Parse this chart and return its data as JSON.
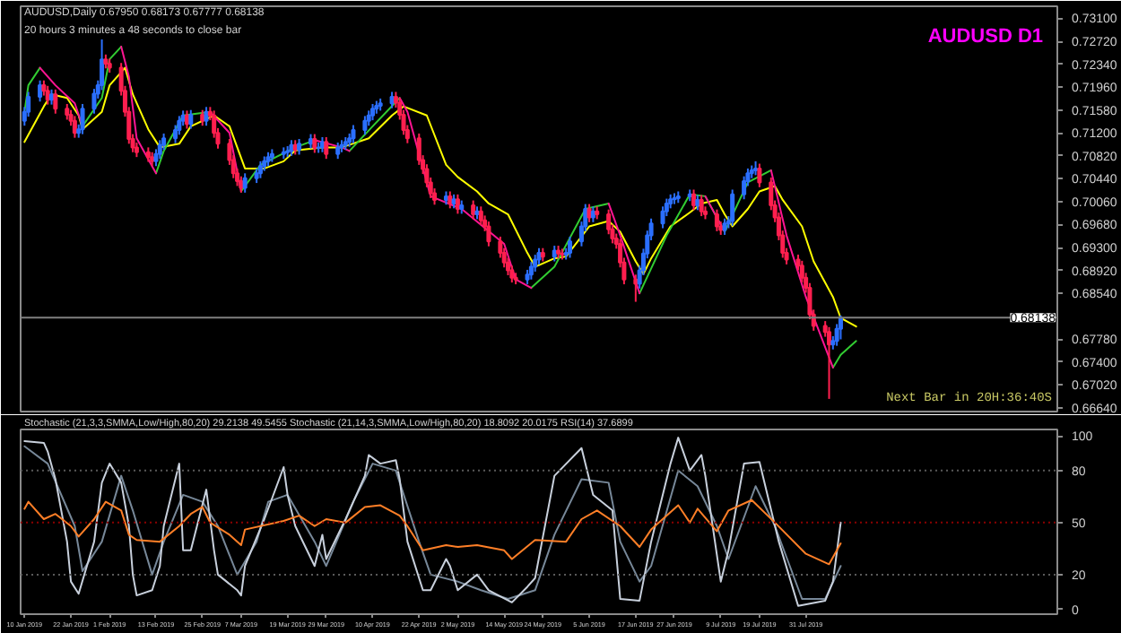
{
  "chart_data": [
    {
      "type": "candlestick",
      "title": "AUDUSD D1",
      "annotations": [
        "AUDUSD,Daily  0.67950 0.68173 0.67777 0.68138",
        "20 hours 3 minutes a 48 seconds to close bar",
        "Next Bar in 20H:36:40S"
      ],
      "x": [
        "2019-01-10",
        "2019-01-11",
        "2019-01-14",
        "2019-01-15",
        "2019-01-16",
        "2019-01-17",
        "2019-01-18",
        "2019-01-21",
        "2019-01-22",
        "2019-01-23",
        "2019-01-24",
        "2019-01-25",
        "2019-01-28",
        "2019-01-29",
        "2019-01-30",
        "2019-01-31",
        "2019-02-01",
        "2019-02-04",
        "2019-02-05",
        "2019-02-06",
        "2019-02-07",
        "2019-02-08",
        "2019-02-11",
        "2019-02-12",
        "2019-02-13",
        "2019-02-14",
        "2019-02-15",
        "2019-02-18",
        "2019-02-19",
        "2019-02-20",
        "2019-02-21",
        "2019-02-22",
        "2019-02-25",
        "2019-02-26",
        "2019-02-27",
        "2019-02-28",
        "2019-03-01",
        "2019-03-04",
        "2019-03-05",
        "2019-03-06",
        "2019-03-07",
        "2019-03-08",
        "2019-03-11",
        "2019-03-12",
        "2019-03-13",
        "2019-03-14",
        "2019-03-15",
        "2019-03-18",
        "2019-03-19",
        "2019-03-20",
        "2019-03-21",
        "2019-03-22",
        "2019-03-25",
        "2019-03-26",
        "2019-03-27",
        "2019-03-28",
        "2019-03-29",
        "2019-04-01",
        "2019-04-02",
        "2019-04-03",
        "2019-04-04",
        "2019-04-05",
        "2019-04-08",
        "2019-04-09",
        "2019-04-10",
        "2019-04-11",
        "2019-04-12",
        "2019-04-15",
        "2019-04-16",
        "2019-04-17",
        "2019-04-18",
        "2019-04-19",
        "2019-04-22",
        "2019-04-23",
        "2019-04-24",
        "2019-04-25",
        "2019-04-26",
        "2019-04-29",
        "2019-04-30",
        "2019-05-01",
        "2019-05-02",
        "2019-05-03",
        "2019-05-06",
        "2019-05-07",
        "2019-05-08",
        "2019-05-09",
        "2019-05-10",
        "2019-05-13",
        "2019-05-14",
        "2019-05-15",
        "2019-05-16",
        "2019-05-17",
        "2019-05-20",
        "2019-05-21",
        "2019-05-22",
        "2019-05-23",
        "2019-05-24",
        "2019-05-27",
        "2019-05-28",
        "2019-05-29",
        "2019-05-30",
        "2019-05-31",
        "2019-06-03",
        "2019-06-04",
        "2019-06-05",
        "2019-06-06",
        "2019-06-07",
        "2019-06-10",
        "2019-06-11",
        "2019-06-12",
        "2019-06-13",
        "2019-06-14",
        "2019-06-17",
        "2019-06-18",
        "2019-06-19",
        "2019-06-20",
        "2019-06-21",
        "2019-06-24",
        "2019-06-25",
        "2019-06-26",
        "2019-06-27",
        "2019-06-28",
        "2019-07-01",
        "2019-07-02",
        "2019-07-03",
        "2019-07-04",
        "2019-07-05",
        "2019-07-08",
        "2019-07-09",
        "2019-07-10",
        "2019-07-11",
        "2019-07-12",
        "2019-07-15",
        "2019-07-16",
        "2019-07-17",
        "2019-07-18",
        "2019-07-19",
        "2019-07-22",
        "2019-07-23",
        "2019-07-24",
        "2019-07-25",
        "2019-07-26",
        "2019-07-29",
        "2019-07-30",
        "2019-07-31",
        "2019-08-01",
        "2019-08-02",
        "2019-08-05",
        "2019-08-06",
        "2019-08-07",
        "2019-08-08",
        "2019-08-09"
      ],
      "ohlc": [
        [
          0.714,
          0.7163,
          0.7132,
          0.7155
        ],
        [
          0.7155,
          0.7188,
          0.7147,
          0.718
        ],
        [
          0.718,
          0.7207,
          0.7172,
          0.7199
        ],
        [
          0.7199,
          0.7207,
          0.7182,
          0.719
        ],
        [
          0.719,
          0.7198,
          0.7167,
          0.7175
        ],
        [
          0.7175,
          0.7192,
          0.7167,
          0.7184
        ],
        [
          0.7184,
          0.7192,
          0.7152,
          0.716
        ],
        [
          0.716,
          0.7168,
          0.7142,
          0.715
        ],
        [
          0.715,
          0.7158,
          0.7132,
          0.714
        ],
        [
          0.714,
          0.7148,
          0.7112,
          0.712
        ],
        [
          0.712,
          0.7134,
          0.7112,
          0.7126
        ],
        [
          0.7126,
          0.7168,
          0.7118,
          0.716
        ],
        [
          0.716,
          0.7193,
          0.7152,
          0.7185
        ],
        [
          0.7185,
          0.7207,
          0.7177,
          0.7199
        ],
        [
          0.7199,
          0.7275,
          0.7191,
          0.7242
        ],
        [
          0.7242,
          0.725,
          0.7227,
          0.7235
        ],
        [
          0.7235,
          0.7243,
          0.722,
          0.7228
        ],
        [
          0.7228,
          0.7236,
          0.7182,
          0.719
        ],
        [
          0.719,
          0.7198,
          0.7147,
          0.7155
        ],
        [
          0.7155,
          0.7163,
          0.7102,
          0.711
        ],
        [
          0.711,
          0.7118,
          0.7088,
          0.7096
        ],
        [
          0.7096,
          0.7104,
          0.708,
          0.7088
        ],
        [
          0.7088,
          0.7096,
          0.7072,
          0.708
        ],
        [
          0.708,
          0.7088,
          0.7065,
          0.7073
        ],
        [
          0.7073,
          0.7093,
          0.7065,
          0.7085
        ],
        [
          0.7085,
          0.7108,
          0.7077,
          0.71
        ],
        [
          0.71,
          0.7119,
          0.7092,
          0.7111
        ],
        [
          0.7111,
          0.7133,
          0.7103,
          0.7125
        ],
        [
          0.7125,
          0.7148,
          0.7117,
          0.714
        ],
        [
          0.714,
          0.7157,
          0.7132,
          0.7149
        ],
        [
          0.7149,
          0.7157,
          0.7127,
          0.7135
        ],
        [
          0.7135,
          0.7158,
          0.7127,
          0.715
        ],
        [
          0.715,
          0.7158,
          0.7132,
          0.714
        ],
        [
          0.714,
          0.7163,
          0.7132,
          0.7155
        ],
        [
          0.7155,
          0.7163,
          0.7141,
          0.7149
        ],
        [
          0.7149,
          0.7157,
          0.7112,
          0.712
        ],
        [
          0.712,
          0.7128,
          0.7094,
          0.7102
        ],
        [
          0.7102,
          0.711,
          0.7067,
          0.7075
        ],
        [
          0.7075,
          0.7083,
          0.7045,
          0.7053
        ],
        [
          0.7053,
          0.7061,
          0.7032,
          0.704
        ],
        [
          0.704,
          0.7048,
          0.7021,
          0.7029
        ],
        [
          0.7029,
          0.7053,
          0.7021,
          0.7045
        ],
        [
          0.7045,
          0.7061,
          0.7037,
          0.7053
        ],
        [
          0.7053,
          0.7073,
          0.7045,
          0.7065
        ],
        [
          0.7065,
          0.7081,
          0.7057,
          0.7073
        ],
        [
          0.7073,
          0.7088,
          0.7065,
          0.708
        ],
        [
          0.708,
          0.7093,
          0.7072,
          0.7085
        ],
        [
          0.7085,
          0.7096,
          0.7077,
          0.7088
        ],
        [
          0.7088,
          0.7098,
          0.708,
          0.709
        ],
        [
          0.709,
          0.7108,
          0.7082,
          0.71
        ],
        [
          0.71,
          0.7108,
          0.7084,
          0.7092
        ],
        [
          0.7092,
          0.711,
          0.7084,
          0.7102
        ],
        [
          0.7102,
          0.7118,
          0.7094,
          0.711
        ],
        [
          0.711,
          0.7118,
          0.7087,
          0.7095
        ],
        [
          0.7095,
          0.7104,
          0.7087,
          0.7096
        ],
        [
          0.7096,
          0.7113,
          0.7088,
          0.7105
        ],
        [
          0.7105,
          0.7113,
          0.7077,
          0.7085
        ],
        [
          0.7085,
          0.7104,
          0.7077,
          0.7096
        ],
        [
          0.7096,
          0.7108,
          0.7088,
          0.71
        ],
        [
          0.71,
          0.7113,
          0.7092,
          0.7105
        ],
        [
          0.7105,
          0.7119,
          0.7097,
          0.7111
        ],
        [
          0.7111,
          0.7133,
          0.7103,
          0.7125
        ],
        [
          0.7125,
          0.7148,
          0.7117,
          0.714
        ],
        [
          0.714,
          0.7157,
          0.7132,
          0.7149
        ],
        [
          0.7149,
          0.7168,
          0.7141,
          0.716
        ],
        [
          0.716,
          0.7173,
          0.7152,
          0.7165
        ],
        [
          0.7165,
          0.7177,
          0.7157,
          0.7169
        ],
        [
          0.7169,
          0.7188,
          0.7161,
          0.718
        ],
        [
          0.718,
          0.7188,
          0.7162,
          0.717
        ],
        [
          0.717,
          0.7178,
          0.7142,
          0.715
        ],
        [
          0.715,
          0.7158,
          0.7117,
          0.7125
        ],
        [
          0.7125,
          0.7133,
          0.7103,
          0.7111
        ],
        [
          0.7111,
          0.7119,
          0.7067,
          0.7075
        ],
        [
          0.7075,
          0.7083,
          0.7052,
          0.706
        ],
        [
          0.706,
          0.7068,
          0.703,
          0.7038
        ],
        [
          0.7038,
          0.7046,
          0.7012,
          0.702
        ],
        [
          0.702,
          0.7028,
          0.7001,
          0.7009
        ],
        [
          0.7009,
          0.7023,
          0.7001,
          0.7015
        ],
        [
          0.7015,
          0.7023,
          0.6995,
          0.7003
        ],
        [
          0.7003,
          0.7018,
          0.6995,
          0.701
        ],
        [
          0.701,
          0.7018,
          0.6986,
          0.6994
        ],
        [
          0.6994,
          0.7008,
          0.6986,
          0.7
        ],
        [
          0.7,
          0.7008,
          0.6977,
          0.6985
        ],
        [
          0.6985,
          0.6998,
          0.6977,
          0.699
        ],
        [
          0.699,
          0.6998,
          0.6967,
          0.6975
        ],
        [
          0.6975,
          0.6983,
          0.6957,
          0.6965
        ],
        [
          0.6965,
          0.6973,
          0.6932,
          0.694
        ],
        [
          0.694,
          0.6948,
          0.6913,
          0.6921
        ],
        [
          0.6921,
          0.6929,
          0.6897,
          0.6905
        ],
        [
          0.6905,
          0.6913,
          0.6884,
          0.6892
        ],
        [
          0.6892,
          0.69,
          0.6872,
          0.688
        ],
        [
          0.688,
          0.6888,
          0.6869,
          0.6877
        ],
        [
          0.6877,
          0.6893,
          0.6869,
          0.6885
        ],
        [
          0.6885,
          0.6906,
          0.6877,
          0.6898
        ],
        [
          0.6898,
          0.6918,
          0.689,
          0.691
        ],
        [
          0.691,
          0.6929,
          0.6902,
          0.6921
        ],
        [
          0.6921,
          0.6929,
          0.6907,
          0.6915
        ],
        [
          0.6915,
          0.6933,
          0.6907,
          0.6925
        ],
        [
          0.6925,
          0.6933,
          0.6912,
          0.692
        ],
        [
          0.692,
          0.6928,
          0.691,
          0.6918
        ],
        [
          0.6918,
          0.6929,
          0.691,
          0.6921
        ],
        [
          0.6921,
          0.6948,
          0.6913,
          0.694
        ],
        [
          0.694,
          0.6973,
          0.6932,
          0.6965
        ],
        [
          0.6965,
          0.7002,
          0.6957,
          0.6994
        ],
        [
          0.6994,
          0.7002,
          0.6972,
          0.698
        ],
        [
          0.698,
          0.6998,
          0.6972,
          0.699
        ],
        [
          0.699,
          0.6998,
          0.6977,
          0.6985
        ],
        [
          0.6985,
          0.6993,
          0.6952,
          0.696
        ],
        [
          0.696,
          0.6968,
          0.6937,
          0.6945
        ],
        [
          0.6945,
          0.6953,
          0.6928,
          0.6936
        ],
        [
          0.6936,
          0.6944,
          0.6897,
          0.6905
        ],
        [
          0.6905,
          0.6913,
          0.6869,
          0.6877
        ],
        [
          0.6877,
          0.6885,
          0.684,
          0.687
        ],
        [
          0.687,
          0.69,
          0.6862,
          0.6892
        ],
        [
          0.6892,
          0.6928,
          0.6884,
          0.692
        ],
        [
          0.692,
          0.6958,
          0.6912,
          0.695
        ],
        [
          0.695,
          0.6978,
          0.6942,
          0.697
        ],
        [
          0.697,
          0.6998,
          0.6962,
          0.699
        ],
        [
          0.699,
          0.7011,
          0.6982,
          0.7003
        ],
        [
          0.7003,
          0.7018,
          0.6995,
          0.701
        ],
        [
          0.701,
          0.702,
          0.7002,
          0.7012
        ],
        [
          0.7012,
          0.7023,
          0.7004,
          0.7015
        ],
        [
          0.7015,
          0.7026,
          0.7007,
          0.7018
        ],
        [
          0.7018,
          0.7026,
          0.6992,
          0.7
        ],
        [
          0.7,
          0.7017,
          0.6992,
          0.7009
        ],
        [
          0.7009,
          0.7017,
          0.6982,
          0.699
        ],
        [
          0.699,
          0.6998,
          0.6977,
          0.6985
        ],
        [
          0.6985,
          0.6993,
          0.6957,
          0.6965
        ],
        [
          0.6965,
          0.6973,
          0.6951,
          0.6959
        ],
        [
          0.6959,
          0.6978,
          0.6951,
          0.697
        ],
        [
          0.697,
          0.6982,
          0.6962,
          0.6974
        ],
        [
          0.6974,
          0.7026,
          0.6966,
          0.7018
        ],
        [
          0.7018,
          0.7048,
          0.701,
          0.704
        ],
        [
          0.704,
          0.7061,
          0.7032,
          0.7053
        ],
        [
          0.7053,
          0.7066,
          0.7045,
          0.7058
        ],
        [
          0.7058,
          0.7073,
          0.705,
          0.7061
        ],
        [
          0.7061,
          0.7069,
          0.703,
          0.7038
        ],
        [
          0.7038,
          0.7046,
          0.6992,
          0.7
        ],
        [
          0.7,
          0.7008,
          0.6972,
          0.698
        ],
        [
          0.698,
          0.6988,
          0.6942,
          0.695
        ],
        [
          0.695,
          0.6958,
          0.6913,
          0.6921
        ],
        [
          0.6921,
          0.6929,
          0.6902,
          0.691
        ],
        [
          0.691,
          0.6918,
          0.6892,
          0.69
        ],
        [
          0.69,
          0.6908,
          0.6872,
          0.688
        ],
        [
          0.688,
          0.6888,
          0.6855,
          0.6863
        ],
        [
          0.6863,
          0.6871,
          0.6811,
          0.6819
        ],
        [
          0.6819,
          0.6827,
          0.6792,
          0.68
        ],
        [
          0.68,
          0.6808,
          0.6782,
          0.679
        ],
        [
          0.679,
          0.6798,
          0.6679,
          0.6769
        ],
        [
          0.6769,
          0.6783,
          0.6761,
          0.6775
        ],
        [
          0.6775,
          0.6803,
          0.6767,
          0.6795
        ],
        [
          0.6795,
          0.68173,
          0.67777,
          0.68138
        ]
      ],
      "colors": [
        "#2b6fff",
        "#2b6fff",
        "#2b6fff",
        "#ff1f4f",
        "#ff1f4f",
        "#2b6fff",
        "#ff1f4f",
        "#ff1f4f",
        "#ff1f4f",
        "#ff1f4f",
        "#2b6fff",
        "#2b6fff",
        "#2b6fff",
        "#2b6fff",
        "#2b6fff",
        "#ff1f4f",
        "#ff1f4f",
        "#ff1f4f",
        "#ff1f4f",
        "#ff1f4f",
        "#ff1f4f",
        "#ff1f4f",
        "#ff1f4f",
        "#ff1f4f",
        "#2b6fff",
        "#2b6fff",
        "#2b6fff",
        "#2b6fff",
        "#2b6fff",
        "#2b6fff",
        "#ff1f4f",
        "#2b6fff",
        "#ff1f4f",
        "#2b6fff",
        "#ff1f4f",
        "#ff1f4f",
        "#ff1f4f",
        "#ff1f4f",
        "#ff1f4f",
        "#ff1f4f",
        "#ff1f4f",
        "#2b6fff",
        "#2b6fff",
        "#2b6fff",
        "#2b6fff",
        "#2b6fff",
        "#2b6fff",
        "#2b6fff",
        "#2b6fff",
        "#2b6fff",
        "#ff1f4f",
        "#2b6fff",
        "#2b6fff",
        "#ff1f4f",
        "#2b6fff",
        "#2b6fff",
        "#ff1f4f",
        "#2b6fff",
        "#2b6fff",
        "#2b6fff",
        "#2b6fff",
        "#2b6fff",
        "#2b6fff",
        "#2b6fff",
        "#2b6fff",
        "#2b6fff",
        "#2b6fff",
        "#2b6fff",
        "#ff1f4f",
        "#ff1f4f",
        "#ff1f4f",
        "#ff1f4f",
        "#ff1f4f",
        "#ff1f4f",
        "#ff1f4f",
        "#ff1f4f",
        "#ff1f4f",
        "#2b6fff",
        "#ff1f4f",
        "#2b6fff",
        "#ff1f4f",
        "#2b6fff",
        "#ff1f4f",
        "#2b6fff",
        "#ff1f4f",
        "#ff1f4f",
        "#ff1f4f",
        "#ff1f4f",
        "#ff1f4f",
        "#ff1f4f",
        "#ff1f4f",
        "#ff1f4f",
        "#2b6fff",
        "#2b6fff",
        "#2b6fff",
        "#2b6fff",
        "#ff1f4f",
        "#2b6fff",
        "#ff1f4f",
        "#ff1f4f",
        "#2b6fff",
        "#2b6fff",
        "#2b6fff",
        "#2b6fff",
        "#ff1f4f",
        "#2b6fff",
        "#ff1f4f",
        "#ff1f4f",
        "#ff1f4f",
        "#ff1f4f",
        "#ff1f4f",
        "#ff1f4f",
        "#ff1f4f",
        "#2b6fff",
        "#2b6fff",
        "#2b6fff",
        "#2b6fff",
        "#2b6fff",
        "#2b6fff",
        "#2b6fff",
        "#2b6fff",
        "#2b6fff",
        "#2b6fff",
        "#ff1f4f",
        "#2b6fff",
        "#ff1f4f",
        "#ff1f4f",
        "#ff1f4f",
        "#ff1f4f",
        "#2b6fff",
        "#2b6fff",
        "#2b6fff",
        "#2b6fff",
        "#2b6fff",
        "#2b6fff",
        "#2b6fff",
        "#ff1f4f",
        "#ff1f4f",
        "#ff1f4f",
        "#ff1f4f",
        "#ff1f4f",
        "#ff1f4f",
        "#ff1f4f",
        "#ff1f4f",
        "#ff1f4f",
        "#ff1f4f",
        "#ff1f4f",
        "#ff1f4f",
        "#ff1f4f",
        "#2b6fff",
        "#2b6fff",
        "#2b6fff"
      ],
      "series": [
        {
          "type": "line",
          "color": "#ffff00",
          "x": [
            "2019-01-10",
            "2019-01-15",
            "2019-01-17",
            "2019-01-21",
            "2019-01-24",
            "2019-01-25",
            "2019-01-30",
            "2019-02-01",
            "2019-02-05",
            "2019-02-07",
            "2019-02-11",
            "2019-02-14",
            "2019-02-19",
            "2019-02-22",
            "2019-02-28",
            "2019-03-04",
            "2019-03-06",
            "2019-03-08",
            "2019-03-13",
            "2019-03-18",
            "2019-03-21",
            "2019-03-28",
            "2019-04-02",
            "2019-04-09",
            "2019-04-15",
            "2019-04-18",
            "2019-04-24",
            "2019-04-29",
            "2019-05-02",
            "2019-05-07",
            "2019-05-10",
            "2019-05-15",
            "2019-05-20",
            "2019-05-22",
            "2019-05-27",
            "2019-05-30",
            "2019-06-05",
            "2019-06-10",
            "2019-06-13",
            "2019-06-17",
            "2019-06-19",
            "2019-06-21",
            "2019-06-26",
            "2019-07-01",
            "2019-07-04",
            "2019-07-08",
            "2019-07-10",
            "2019-07-12",
            "2019-07-16",
            "2019-07-19",
            "2019-07-23",
            "2019-07-25",
            "2019-07-30",
            "2019-08-02",
            "2019-08-07",
            "2019-08-09",
            "2019-08-13"
          ],
          "values": [
            0.7105,
            0.7164,
            0.7184,
            0.7178,
            0.7149,
            0.7126,
            0.7155,
            0.7199,
            0.7228,
            0.7184,
            0.7126,
            0.7096,
            0.7102,
            0.7131,
            0.7149,
            0.7131,
            0.7096,
            0.7061,
            0.7061,
            0.7073,
            0.7091,
            0.7096,
            0.7096,
            0.7111,
            0.7149,
            0.7164,
            0.7149,
            0.7067,
            0.7047,
            0.7023,
            0.7003,
            0.6985,
            0.6921,
            0.6898,
            0.6912,
            0.6915,
            0.6965,
            0.6974,
            0.6956,
            0.6907,
            0.6886,
            0.6912,
            0.6965,
            0.6988,
            0.7003,
            0.7009,
            0.6985,
            0.6965,
            0.6994,
            0.7023,
            0.7032,
            0.7009,
            0.6965,
            0.6907,
            0.6848,
            0.6813,
            0.6799
          ]
        },
        {
          "type": "line",
          "color": "#32cd32",
          "x": [
            "2019-01-10",
            "2019-01-11",
            "2019-01-14",
            "2019-01-18",
            "2019-01-23",
            "2019-01-25",
            "2019-01-30",
            "2019-02-01",
            "2019-02-04",
            "2019-02-06",
            "2019-02-08",
            "2019-02-13",
            "2019-02-15",
            "2019-02-20",
            "2019-02-27",
            "2019-03-04",
            "2019-03-07",
            "2019-03-12",
            "2019-03-21",
            "2019-03-26",
            "2019-04-02",
            "2019-04-04",
            "2019-04-10",
            "2019-04-17",
            "2019-04-19",
            "2019-04-25",
            "2019-05-03",
            "2019-05-14",
            "2019-05-17",
            "2019-05-21",
            "2019-05-27",
            "2019-06-04",
            "2019-06-10",
            "2019-06-13",
            "2019-06-18",
            "2019-06-25",
            "2019-07-01",
            "2019-07-05",
            "2019-07-10",
            "2019-07-16",
            "2019-07-22",
            "2019-07-26",
            "2019-07-31",
            "2019-08-07",
            "2019-08-09",
            "2019-08-13"
          ],
          "values": [
            0.7155,
            0.7199,
            0.7228,
            null,
            null,
            0.7131,
            0.7178,
            0.7242,
            0.7263,
            null,
            null,
            0.7053,
            0.709,
            0.7149,
            0.7155,
            null,
            0.7023,
            0.7067,
            0.7096,
            0.7108,
            null,
            0.709,
            0.7131,
            0.7178,
            null,
            null,
            null,
            null,
            null,
            0.6863,
            0.6898,
            0.6994,
            0.7003,
            null,
            0.6854,
            0.695,
            0.7018,
            0.7015,
            0.6956,
            0.7038,
            0.7058,
            null,
            null,
            0.6731,
            0.6752,
            0.6775
          ]
        },
        {
          "type": "line",
          "color": "#ff1493",
          "x": [
            "2019-01-14",
            "2019-01-18",
            "2019-01-23",
            "2019-01-25",
            "2019-01-30",
            "2019-02-01",
            "2019-02-04",
            "2019-02-06",
            "2019-02-08",
            "2019-02-13",
            "2019-02-15",
            "2019-02-20",
            "2019-02-27",
            "2019-03-04",
            "2019-03-07",
            "2019-03-12",
            "2019-03-21",
            "2019-03-26",
            "2019-04-02",
            "2019-04-04",
            "2019-04-10",
            "2019-04-17",
            "2019-04-19",
            "2019-04-25",
            "2019-05-03",
            "2019-05-14",
            "2019-05-17",
            "2019-05-21",
            "2019-05-27",
            "2019-06-04",
            "2019-06-10",
            "2019-06-13",
            "2019-06-18",
            "2019-06-25",
            "2019-07-01",
            "2019-07-05",
            "2019-07-10",
            "2019-07-16",
            "2019-07-22",
            "2019-07-26",
            "2019-07-31",
            "2019-08-07"
          ],
          "values": [
            0.7228,
            0.7199,
            0.7169,
            0.7131,
            null,
            null,
            0.7263,
            0.7213,
            0.7111,
            0.7053,
            null,
            null,
            0.7155,
            0.712,
            0.7023,
            null,
            null,
            0.7108,
            0.7096,
            0.709,
            null,
            0.7178,
            0.7155,
            0.7015,
            0.6994,
            0.6936,
            0.6877,
            0.6863,
            null,
            null,
            0.7003,
            0.695,
            0.6854,
            null,
            null,
            0.7015,
            0.6956,
            null,
            0.7058,
            0.695,
            0.6848,
            0.6731
          ]
        }
      ],
      "xlim": [
        "2019-01-09",
        "2019-10-04"
      ],
      "ylim": [
        0.6658,
        0.733
      ],
      "yticks": [
        {
          "value": 0.731,
          "label": "0.73100"
        },
        {
          "value": 0.7272,
          "label": "0.72720"
        },
        {
          "value": 0.7234,
          "label": "0.72340"
        },
        {
          "value": 0.7196,
          "label": "0.71960"
        },
        {
          "value": 0.7158,
          "label": "0.71580"
        },
        {
          "value": 0.712,
          "label": "0.71200"
        },
        {
          "value": 0.7082,
          "label": "0.70820"
        },
        {
          "value": 0.7044,
          "label": "0.70440"
        },
        {
          "value": 0.7006,
          "label": "0.70060"
        },
        {
          "value": 0.6968,
          "label": "0.69680"
        },
        {
          "value": 0.693,
          "label": "0.69300"
        },
        {
          "value": 0.6892,
          "label": "0.68920"
        },
        {
          "value": 0.6854,
          "label": "0.68540"
        },
        {
          "value": 0.6778,
          "label": "0.67780"
        },
        {
          "value": 0.674,
          "label": "0.67400"
        },
        {
          "value": 0.6702,
          "label": "0.67020"
        },
        {
          "value": 0.6664,
          "label": "0.66640"
        }
      ],
      "ref_lines": [
        {
          "axis": "y",
          "value": 0.68138,
          "label": "0.68138",
          "color": "#7f7f7f"
        }
      ],
      "tick_labels": "y"
    },
    {
      "type": "line",
      "title": "Stochastic (21,3,3,SMMA,Low/High,80,20) 29.2138 49.5455  Stochastic (21,14,3,SMMA,Low/High,80,20) 18.8092 20.0175  RSI(14) 37.6899",
      "series": [
        {
          "color": "#778899",
          "x": [
            "2019-01-10",
            "2019-01-16",
            "2019-01-23",
            "2019-01-25",
            "2019-01-30",
            "2019-02-04",
            "2019-02-07",
            "2019-02-12",
            "2019-02-15",
            "2019-02-20",
            "2019-02-25",
            "2019-03-01",
            "2019-03-06",
            "2019-03-11",
            "2019-03-14",
            "2019-03-19",
            "2019-03-26",
            "2019-03-29",
            "2019-04-05",
            "2019-04-10",
            "2019-04-16",
            "2019-04-22",
            "2019-04-25",
            "2019-05-02",
            "2019-05-08",
            "2019-05-15",
            "2019-05-22",
            "2019-05-27",
            "2019-06-03",
            "2019-06-10",
            "2019-06-13",
            "2019-06-18",
            "2019-06-21",
            "2019-06-28",
            "2019-07-03",
            "2019-07-08",
            "2019-07-11",
            "2019-07-18",
            "2019-07-23",
            "2019-07-30",
            "2019-08-05",
            "2019-08-09"
          ],
          "values": [
            94,
            84,
            48,
            22,
            39,
            77,
            57,
            20,
            39,
            66,
            62,
            48,
            20,
            39,
            62,
            66,
            39,
            25,
            62,
            84,
            80,
            39,
            20,
            16,
            11,
            6,
            11,
            43,
            75,
            73,
            39,
            16,
            25,
            80,
            71,
            48,
            29,
            71,
            48,
            6,
            6,
            25
          ]
        },
        {
          "color": "#c8d0dc",
          "x": [
            "2019-01-10",
            "2019-01-15",
            "2019-01-16",
            "2019-01-18",
            "2019-01-21",
            "2019-01-22",
            "2019-01-24",
            "2019-01-28",
            "2019-01-30",
            "2019-02-01",
            "2019-02-04",
            "2019-02-06",
            "2019-02-07",
            "2019-02-08",
            "2019-02-12",
            "2019-02-14",
            "2019-02-15",
            "2019-02-19",
            "2019-02-20",
            "2019-02-22",
            "2019-02-26",
            "2019-02-28",
            "2019-03-01",
            "2019-03-06",
            "2019-03-07",
            "2019-03-08",
            "2019-03-13",
            "2019-03-18",
            "2019-03-19",
            "2019-03-21",
            "2019-03-26",
            "2019-03-28",
            "2019-03-29",
            "2019-04-03",
            "2019-04-08",
            "2019-04-09",
            "2019-04-12",
            "2019-04-16",
            "2019-04-17",
            "2019-04-19",
            "2019-04-23",
            "2019-04-25",
            "2019-04-29",
            "2019-04-30",
            "2019-05-02",
            "2019-05-07",
            "2019-05-10",
            "2019-05-16",
            "2019-05-20",
            "2019-05-22",
            "2019-05-27",
            "2019-06-03",
            "2019-06-06",
            "2019-06-11",
            "2019-06-13",
            "2019-06-18",
            "2019-06-21",
            "2019-06-26",
            "2019-06-28",
            "2019-07-01",
            "2019-07-04",
            "2019-07-05",
            "2019-07-09",
            "2019-07-11",
            "2019-07-15",
            "2019-07-19",
            "2019-07-24",
            "2019-07-29",
            "2019-08-05",
            "2019-08-07",
            "2019-08-09"
          ],
          "values": [
            97,
            96,
            91,
            75,
            39,
            16,
            9,
            39,
            73,
            84,
            73,
            48,
            20,
            8,
            11,
            25,
            48,
            84,
            34,
            34,
            69,
            34,
            20,
            11,
            8,
            25,
            52,
            82,
            66,
            48,
            25,
            43,
            29,
            52,
            77,
            89,
            84,
            86,
            75,
            39,
            11,
            11,
            29,
            25,
            11,
            20,
            11,
            4,
            13,
            18,
            77,
            93,
            66,
            57,
            6,
            5,
            39,
            84,
            99,
            80,
            89,
            77,
            16,
            34,
            84,
            85,
            39,
            2,
            5,
            16,
            50
          ]
        },
        {
          "color": "#ff7f27",
          "x": [
            "2019-01-10",
            "2019-01-11",
            "2019-01-15",
            "2019-01-18",
            "2019-01-22",
            "2019-01-24",
            "2019-01-28",
            "2019-01-31",
            "2019-02-04",
            "2019-02-06",
            "2019-02-08",
            "2019-02-14",
            "2019-02-19",
            "2019-02-22",
            "2019-02-25",
            "2019-02-27",
            "2019-03-04",
            "2019-03-07",
            "2019-03-08",
            "2019-03-18",
            "2019-03-22",
            "2019-03-26",
            "2019-03-29",
            "2019-04-03",
            "2019-04-08",
            "2019-04-12",
            "2019-04-17",
            "2019-04-19",
            "2019-04-23",
            "2019-04-29",
            "2019-05-02",
            "2019-05-07",
            "2019-05-14",
            "2019-05-16",
            "2019-05-22",
            "2019-05-30",
            "2019-06-03",
            "2019-06-07",
            "2019-06-13",
            "2019-06-18",
            "2019-06-21",
            "2019-06-28",
            "2019-07-01",
            "2019-07-03",
            "2019-07-08",
            "2019-07-11",
            "2019-07-17",
            "2019-07-23",
            "2019-07-31",
            "2019-08-06",
            "2019-08-09"
          ],
          "values": [
            58,
            62,
            52,
            55,
            48,
            42,
            52,
            62,
            57,
            43,
            40,
            39,
            48,
            55,
            59,
            50,
            43,
            37,
            46,
            51,
            54,
            48,
            52,
            50,
            59,
            60,
            54,
            48,
            34,
            37,
            36,
            37,
            34,
            29,
            40,
            39,
            52,
            57,
            48,
            36,
            46,
            60,
            50,
            58,
            45,
            57,
            63,
            50,
            32,
            26,
            38
          ]
        }
      ],
      "xlim": [
        "2019-01-09",
        "2019-10-04"
      ],
      "xticks": [
        {
          "value": "2019-01-10",
          "label": "10 Jan 2019"
        },
        {
          "value": "2019-01-22",
          "label": "22 Jan 2019"
        },
        {
          "value": "2019-02-01",
          "label": "1 Feb 2019"
        },
        {
          "value": "2019-02-13",
          "label": "13 Feb 2019"
        },
        {
          "value": "2019-02-25",
          "label": "25 Feb 2019"
        },
        {
          "value": "2019-03-07",
          "label": "7 Mar 2019"
        },
        {
          "value": "2019-03-19",
          "label": "19 Mar 2019"
        },
        {
          "value": "2019-03-29",
          "label": "29 Mar 2019"
        },
        {
          "value": "2019-04-10",
          "label": "10 Apr 2019"
        },
        {
          "value": "2019-04-22",
          "label": "22 Apr 2019"
        },
        {
          "value": "2019-05-02",
          "label": "2 May 2019"
        },
        {
          "value": "2019-05-14",
          "label": "14 May 2019"
        },
        {
          "value": "2019-05-24",
          "label": "24 May 2019"
        },
        {
          "value": "2019-06-05",
          "label": "5 Jun 2019"
        },
        {
          "value": "2019-06-17",
          "label": "17 Jun 2019"
        },
        {
          "value": "2019-06-27",
          "label": "27 Jun 2019"
        },
        {
          "value": "2019-07-09",
          "label": "9 Jul 2019"
        },
        {
          "value": "2019-07-19",
          "label": "19 Jul 2019"
        },
        {
          "value": "2019-07-31",
          "label": "31 Jul 2019"
        }
      ],
      "ylim": [
        -2.8,
        103.7
      ],
      "yticks": [
        0,
        20,
        50,
        80,
        100
      ],
      "ref_lines": [
        {
          "axis": "y",
          "value": 80,
          "color": "#5a5a5a",
          "line_style": "dotted"
        },
        {
          "axis": "y",
          "value": 50,
          "color": "#8b0000",
          "line_style": "dotted"
        },
        {
          "axis": "y",
          "value": 20,
          "color": "#5a5a5a",
          "line_style": "dotted"
        }
      ]
    }
  ]
}
